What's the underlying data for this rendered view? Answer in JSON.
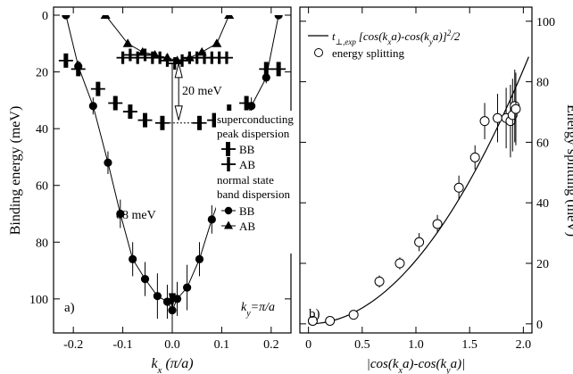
{
  "chart_data": [
    {
      "type": "line",
      "panel_label": "a)",
      "xlabel": "k",
      "xlabel_sub": "x",
      "xlabel_unit": " (π/a)",
      "ylabel": "Binding energy (meV)",
      "xlim": [
        -0.24,
        0.24
      ],
      "ylim": [
        0,
        112
      ],
      "y_inverted": true,
      "xticks": [
        -0.2,
        -0.1,
        0.0,
        0.1,
        0.2
      ],
      "xtick_labels": [
        "-0.2",
        "-0.1",
        "0.0",
        "0.1",
        "0.2"
      ],
      "yticks": [
        0,
        20,
        40,
        60,
        80,
        100
      ],
      "ytick_labels": [
        "0",
        "20",
        "40",
        "60",
        "80",
        "100"
      ],
      "ky_label": "k",
      "ky_sub": "y",
      "ky_value": "=π/a",
      "annotations": {
        "gap_label": "20 meV",
        "depth_label": "88 meV"
      },
      "legend": {
        "heading1": "superconducting",
        "heading2": "peak dispersion",
        "heading3": "normal state",
        "heading4": "band dispersion",
        "entries": [
          "BB",
          "AB",
          "BB",
          "AB"
        ]
      },
      "series": [
        {
          "name": "BB",
          "group": "superconducting peak dispersion",
          "marker": "bar-v",
          "connected": false,
          "x": [
            -0.215,
            -0.19,
            -0.15,
            -0.115,
            -0.085,
            -0.055,
            -0.02,
            0.055,
            0.085,
            0.115,
            0.15,
            0.19,
            0.215
          ],
          "y": [
            16,
            19,
            26,
            31,
            34,
            37,
            38,
            38,
            37,
            34,
            31,
            19,
            19
          ]
        },
        {
          "name": "AB",
          "group": "superconducting peak dispersion",
          "marker": "plus",
          "connected": false,
          "x": [
            -0.1,
            -0.085,
            -0.07,
            -0.055,
            -0.04,
            -0.025,
            -0.01,
            0.005,
            0.02,
            0.035,
            0.05,
            0.065,
            0.08,
            0.095,
            0.11
          ],
          "y": [
            15,
            14,
            15,
            14,
            15,
            15,
            16,
            17,
            16,
            15,
            15,
            15,
            15,
            15,
            15
          ]
        },
        {
          "name": "BB",
          "group": "normal state band dispersion",
          "marker": "circle",
          "connected": true,
          "x": [
            -0.215,
            -0.19,
            -0.16,
            -0.13,
            -0.105,
            -0.08,
            -0.055,
            -0.03,
            -0.01,
            0.0,
            0.01,
            0.03,
            0.055,
            0.08,
            0.105,
            0.13,
            0.16,
            0.19,
            0.215
          ],
          "y": [
            0,
            18,
            32,
            52,
            70,
            86,
            93,
            99,
            101,
            104,
            100,
            96,
            86,
            72,
            60,
            46,
            32,
            22,
            0
          ],
          "yerr": [
            0,
            2,
            3,
            4,
            5,
            6,
            6,
            8,
            6,
            8,
            6,
            8,
            6,
            5,
            4,
            4,
            3,
            2,
            0
          ]
        },
        {
          "name": "AB",
          "group": "normal state band dispersion",
          "marker": "triangle",
          "connected": true,
          "x": [
            -0.135,
            -0.09,
            -0.06,
            -0.035,
            -0.01,
            0.01,
            0.035,
            0.06,
            0.09,
            0.115
          ],
          "y": [
            0,
            10,
            13,
            14,
            15,
            16,
            15,
            13,
            10,
            0
          ]
        }
      ]
    },
    {
      "type": "scatter",
      "panel_label": "b)",
      "xlabel": "|cos(k",
      "xlabel_sub1": "x",
      "xlabel_mid": "a)-cos(k",
      "xlabel_sub2": "y",
      "xlabel_end": "a)|",
      "ylabel": "Energy splitting (meV)",
      "xlim": [
        -0.08,
        2.08
      ],
      "ylim": [
        -3,
        102
      ],
      "xticks": [
        0.0,
        0.5,
        1.0,
        1.5,
        2.0
      ],
      "xtick_labels": [
        "0",
        "0.5",
        "1.0",
        "1.5",
        "2.0"
      ],
      "yticks": [
        0,
        20,
        40,
        60,
        80,
        100
      ],
      "ytick_labels": [
        "0",
        "20",
        "40",
        "60",
        "80",
        "100"
      ],
      "legend": {
        "line_label": "t",
        "line_sub": "⊥,exp",
        "line_expr": "[cos(k",
        "line_sub2": "x",
        "line_expr2": "a)-cos(k",
        "line_sub3": "y",
        "line_expr3": "a)]",
        "line_sup": "2",
        "line_tail": "/2",
        "points_label": "energy splitting"
      },
      "series": [
        {
          "name": "energy splitting",
          "marker": "open-circle",
          "x": [
            0.04,
            0.2,
            0.42,
            0.66,
            0.85,
            1.03,
            1.2,
            1.4,
            1.55,
            1.64,
            1.76,
            1.84,
            1.88,
            1.9,
            1.92,
            1.93
          ],
          "y": [
            1,
            1,
            3,
            14,
            20,
            27,
            33,
            45,
            55,
            67,
            68,
            68,
            67,
            69,
            72,
            71
          ],
          "yerr": [
            1,
            1,
            1,
            2,
            2,
            3,
            3,
            4,
            4,
            6,
            8,
            10,
            12,
            12,
            12,
            12
          ]
        },
        {
          "name": "t_perp,exp curve",
          "marker": "line",
          "A": 84,
          "note": "y = 84 * x^2 / 4"
        }
      ]
    }
  ]
}
